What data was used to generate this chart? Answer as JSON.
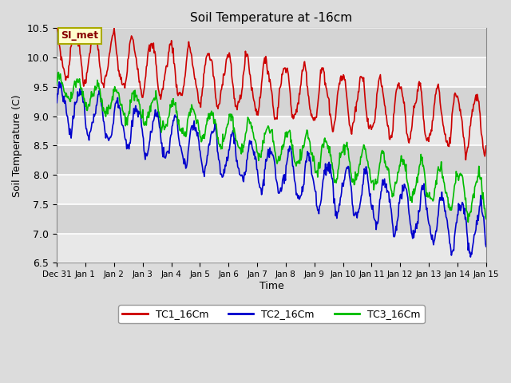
{
  "title": "Soil Temperature at -16cm",
  "xlabel": "Time",
  "ylabel": "Soil Temperature (C)",
  "ylim": [
    6.5,
    10.5
  ],
  "bg_color": "#dcdcdc",
  "plot_bg_color": "#dcdcdc",
  "grid_color": "#f0f0f0",
  "annotation_text": "SI_met",
  "annotation_bg": "#ffffcc",
  "annotation_border": "#aaaa00",
  "series": {
    "TC1_16Cm": {
      "color": "#cc0000"
    },
    "TC2_16Cm": {
      "color": "#0000cc"
    },
    "TC3_16Cm": {
      "color": "#00bb00"
    }
  },
  "x_tick_labels": [
    "Dec 31",
    "Jan 1",
    "Jan 2",
    "Jan 3",
    "Jan 4",
    "Jan 5",
    "Jan 6",
    "Jan 7",
    "Jan 8",
    "Jan 9",
    "Jan 10",
    "Jan 11",
    "Jan 12",
    "Jan 13",
    "Jan 14",
    "Jan 15"
  ],
  "yticks": [
    6.5,
    7.0,
    7.5,
    8.0,
    8.5,
    9.0,
    9.5,
    10.0,
    10.5
  ],
  "figsize": [
    6.4,
    4.8
  ],
  "dpi": 100
}
